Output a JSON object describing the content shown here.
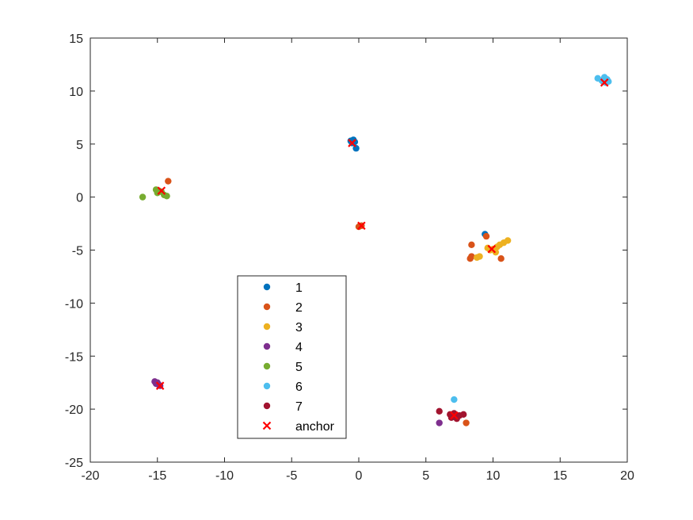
{
  "chart_data": {
    "type": "scatter",
    "title": "",
    "xlabel": "",
    "ylabel": "",
    "xlim": [
      -20,
      20
    ],
    "ylim": [
      -25,
      15
    ],
    "xticks": [
      -20,
      -15,
      -10,
      -5,
      0,
      5,
      10,
      15,
      20
    ],
    "yticks": [
      15,
      10,
      5,
      0,
      -5,
      -10,
      -15,
      -20,
      -25
    ],
    "grid": false,
    "legend_position": "center-bottom-left",
    "series": [
      {
        "name": "1",
        "color": "#0072BD",
        "marker": "dot",
        "points": [
          [
            -0.6,
            5.3
          ],
          [
            -0.5,
            5.1
          ],
          [
            -0.3,
            5.2
          ],
          [
            -0.2,
            4.6
          ],
          [
            -0.4,
            5.4
          ],
          [
            9.4,
            -3.5
          ]
        ]
      },
      {
        "name": "2",
        "color": "#D95319",
        "marker": "dot",
        "points": [
          [
            -14.2,
            1.5
          ],
          [
            0.0,
            -2.8
          ],
          [
            0.2,
            -2.7
          ],
          [
            8.4,
            -4.5
          ],
          [
            8.4,
            -5.6
          ],
          [
            8.3,
            -5.8
          ],
          [
            9.5,
            -3.7
          ],
          [
            10.6,
            -5.8
          ],
          [
            8.0,
            -21.3
          ],
          [
            7.0,
            -20.5
          ],
          [
            18.2,
            10.9
          ]
        ]
      },
      {
        "name": "3",
        "color": "#EDB120",
        "marker": "dot",
        "points": [
          [
            8.8,
            -5.7
          ],
          [
            9.0,
            -5.6
          ],
          [
            9.6,
            -4.8
          ],
          [
            10.0,
            -4.9
          ],
          [
            10.3,
            -4.7
          ],
          [
            10.5,
            -4.5
          ],
          [
            10.8,
            -4.3
          ],
          [
            11.1,
            -4.1
          ],
          [
            9.8,
            -5.0
          ],
          [
            10.2,
            -5.2
          ]
        ]
      },
      {
        "name": "4",
        "color": "#7E2F8E",
        "marker": "dot",
        "points": [
          [
            -15.1,
            -17.6
          ],
          [
            -15.0,
            -17.5
          ],
          [
            -14.9,
            -17.7
          ],
          [
            -14.8,
            -17.8
          ],
          [
            -15.2,
            -17.4
          ],
          [
            6.0,
            -21.3
          ]
        ]
      },
      {
        "name": "5",
        "color": "#77AC30",
        "marker": "dot",
        "points": [
          [
            -16.1,
            0.0
          ],
          [
            -15.0,
            0.4
          ],
          [
            -14.9,
            0.6
          ],
          [
            -14.7,
            0.5
          ],
          [
            -14.5,
            0.2
          ],
          [
            -14.3,
            0.1
          ],
          [
            -15.1,
            0.7
          ]
        ]
      },
      {
        "name": "6",
        "color": "#4DBEEE",
        "marker": "dot",
        "points": [
          [
            17.8,
            11.2
          ],
          [
            18.1,
            11.0
          ],
          [
            18.3,
            11.3
          ],
          [
            18.5,
            11.1
          ],
          [
            18.6,
            10.9
          ],
          [
            18.4,
            10.8
          ],
          [
            7.1,
            -19.1
          ]
        ]
      },
      {
        "name": "7",
        "color": "#A2142F",
        "marker": "dot",
        "points": [
          [
            6.0,
            -20.2
          ],
          [
            6.8,
            -20.5
          ],
          [
            7.0,
            -20.7
          ],
          [
            7.1,
            -20.4
          ],
          [
            7.3,
            -20.9
          ],
          [
            7.5,
            -20.6
          ],
          [
            7.8,
            -20.5
          ],
          [
            6.9,
            -20.8
          ]
        ]
      },
      {
        "name": "anchor",
        "color": "#FF0000",
        "marker": "x",
        "points": [
          [
            -0.5,
            5.1
          ],
          [
            0.2,
            -2.7
          ],
          [
            9.9,
            -4.9
          ],
          [
            -14.8,
            -17.8
          ],
          [
            -14.7,
            0.6
          ],
          [
            18.3,
            10.8
          ],
          [
            7.1,
            -20.6
          ]
        ]
      }
    ]
  }
}
